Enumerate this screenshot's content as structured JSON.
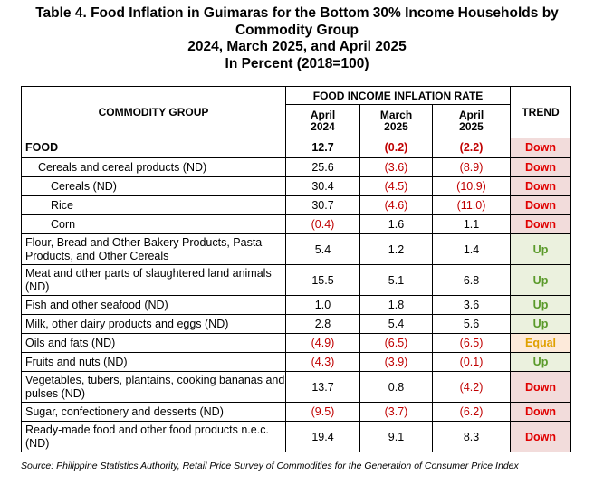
{
  "title": {
    "line1": "Table 4.  Food Inflation in Guimaras for the Bottom 30% Income Households by",
    "line2": "Commodity Group",
    "line3": "2024, March 2025, and April 2025",
    "line4": "In Percent (2018=100)"
  },
  "headers": {
    "commodity_group": "COMMODITY GROUP",
    "rate_group": "FOOD INCOME INFLATION RATE",
    "trend": "TREND",
    "periods": [
      {
        "line1": "April",
        "line2": "2024"
      },
      {
        "line1": "March",
        "line2": "2025"
      },
      {
        "line1": "April",
        "line2": "2025"
      }
    ]
  },
  "rows": [
    {
      "name": "FOOD",
      "apr2024": "12.7",
      "mar2025": "(0.2)",
      "apr2025": "(2.2)",
      "trend": "Down"
    },
    {
      "name": "Cereals and cereal products (ND)",
      "apr2024": "25.6",
      "mar2025": "(3.6)",
      "apr2025": "(8.9)",
      "trend": "Down"
    },
    {
      "name": "Cereals (ND)",
      "apr2024": "30.4",
      "mar2025": "(4.5)",
      "apr2025": "(10.9)",
      "trend": "Down"
    },
    {
      "name": "Rice",
      "apr2024": "30.7",
      "mar2025": "(4.6)",
      "apr2025": "(11.0)",
      "trend": "Down"
    },
    {
      "name": "Corn",
      "apr2024": "(0.4)",
      "mar2025": "1.6",
      "apr2025": "1.1",
      "trend": "Down"
    },
    {
      "name": "Flour, Bread and Other Bakery Products, Pasta Products, and Other Cereals",
      "apr2024": "5.4",
      "mar2025": "1.2",
      "apr2025": "1.4",
      "trend": "Up"
    },
    {
      "name": "Meat and other parts of slaughtered land animals (ND)",
      "apr2024": "15.5",
      "mar2025": "5.1",
      "apr2025": "6.8",
      "trend": "Up"
    },
    {
      "name": "Fish and other seafood (ND)",
      "apr2024": "1.0",
      "mar2025": "1.8",
      "apr2025": "3.6",
      "trend": "Up"
    },
    {
      "name": "Milk, other dairy products and eggs (ND)",
      "apr2024": "2.8",
      "mar2025": "5.4",
      "apr2025": "5.6",
      "trend": "Up"
    },
    {
      "name": "Oils and fats (ND)",
      "apr2024": "(4.9)",
      "mar2025": "(6.5)",
      "apr2025": "(6.5)",
      "trend": "Equal"
    },
    {
      "name": "Fruits and nuts (ND)",
      "apr2024": "(4.3)",
      "mar2025": "(3.9)",
      "apr2025": "(0.1)",
      "trend": "Up"
    },
    {
      "name": "Vegetables, tubers, plantains, cooking bananas and pulses (ND)",
      "apr2024": "13.7",
      "mar2025": "0.8",
      "apr2025": "(4.2)",
      "trend": "Down"
    },
    {
      "name": "Sugar, confectionery and desserts (ND)",
      "apr2024": "(9.5)",
      "mar2025": "(3.7)",
      "apr2025": "(6.2)",
      "trend": "Down"
    },
    {
      "name": "Ready-made food and other food products n.e.c. (ND)",
      "apr2024": "19.4",
      "mar2025": "9.1",
      "apr2025": "8.3",
      "trend": "Down"
    }
  ],
  "colors": {
    "negative_text": "#c00000",
    "down_text": "#e00000",
    "down_bg": "#f2dcdb",
    "up_text": "#5a9a2a",
    "up_bg": "#ebf1de",
    "equal_text": "#e0a000",
    "equal_bg": "#fdeada"
  },
  "source": "Source: Philippine Statistics Authority, Retail Price Survey of Commodities for the Generation of Consumer Price Index"
}
